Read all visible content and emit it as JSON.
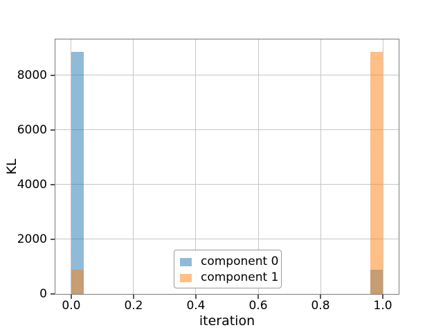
{
  "figure": {
    "background": "#ffffff"
  },
  "chart_data": {
    "type": "bar",
    "title": "",
    "xlabel": "iteration",
    "ylabel": "KL",
    "xlim": [
      -0.051,
      1.051
    ],
    "ylim": [
      0,
      9314
    ],
    "grid": true,
    "xticks": {
      "values": [
        0.0,
        0.2,
        0.4,
        0.6,
        0.8,
        1.0
      ],
      "labels": [
        "0.0",
        "0.2",
        "0.4",
        "0.6",
        "0.8",
        "1.0"
      ]
    },
    "yticks": {
      "values": [
        0,
        2000,
        4000,
        6000,
        8000
      ],
      "labels": [
        "0",
        "2000",
        "4000",
        "6000",
        "8000"
      ]
    },
    "colors": {
      "component0": "#1f77b4",
      "component1": "#ff7f0e",
      "bar_alpha": 0.5,
      "grid": "#c6c6c6",
      "spine": "#7a7a7a",
      "tick": "#555555",
      "text": "#000000"
    },
    "series": [
      {
        "name": "component 0",
        "color": "#1f77b4",
        "alpha": 0.5,
        "bars": [
          {
            "x0": 0.0,
            "x1": 0.04,
            "value": 8870
          },
          {
            "x0": 0.96,
            "x1": 1.0,
            "value": 890
          }
        ]
      },
      {
        "name": "component 1",
        "color": "#ff7f0e",
        "alpha": 0.5,
        "bars": [
          {
            "x0": 0.0,
            "x1": 0.04,
            "value": 890
          },
          {
            "x0": 0.96,
            "x1": 1.0,
            "value": 8870
          }
        ]
      }
    ],
    "legend": {
      "location": "lower center",
      "entries": [
        "component 0",
        "component 1"
      ]
    }
  }
}
